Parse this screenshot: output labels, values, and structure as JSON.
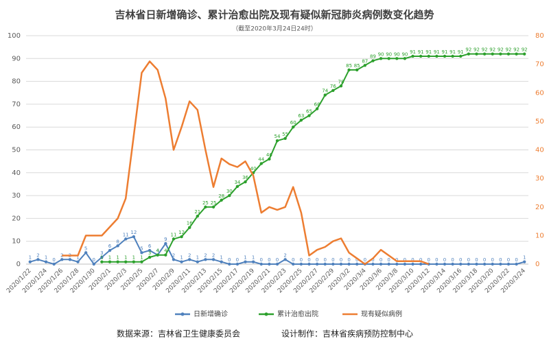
{
  "chart_data": {
    "type": "line",
    "title": "吉林省日新增确诊、累计治愈出院及现有疑似新冠肺炎病例数变化趋势",
    "subtitle": "（截至2020年3月24日24时）",
    "categories": [
      "2020/1/22",
      null,
      "2020/1/24",
      null,
      "2020/1/26",
      null,
      "2020/1/28",
      null,
      "2020/1/30",
      null,
      "2020/2/1",
      null,
      "2020/2/3",
      null,
      "2020/2/5",
      null,
      "2020/2/7",
      null,
      "2020/2/9",
      null,
      "2020/2/11",
      null,
      "2020/2/13",
      null,
      "2020/2/15",
      null,
      "2020/2/17",
      null,
      "2020/2/19",
      null,
      "2020/2/21",
      null,
      "2020/2/23",
      null,
      "2020/2/25",
      null,
      "2020/2/27",
      null,
      "2020/2/29",
      null,
      "2020/3/2",
      null,
      "2020/3/4",
      null,
      "2020/3/6",
      null,
      "2020/3/8",
      null,
      "2020/3/10",
      null,
      "2020/3/12",
      null,
      "2020/3/14",
      null,
      "2020/3/16",
      null,
      "2020/3/18",
      null,
      "2020/3/20",
      null,
      "2020/3/22",
      null,
      "2020/3/24"
    ],
    "series": [
      {
        "name": "日新增确诊",
        "color": "#4f81bd",
        "values": [
          1,
          2,
          1,
          0,
          2,
          2,
          1,
          5,
          0,
          3,
          6,
          8,
          11,
          12,
          5,
          6,
          4,
          9,
          2,
          1,
          2,
          1,
          2,
          2,
          1,
          0,
          0,
          1,
          1,
          0,
          0,
          0,
          2,
          0,
          0,
          0,
          0,
          0,
          0,
          0,
          0,
          0,
          0,
          0,
          0,
          0,
          0,
          0,
          0,
          0,
          0,
          0,
          0,
          0,
          0,
          0,
          0,
          0,
          0,
          0,
          0,
          0,
          1
        ]
      },
      {
        "name": "累计治愈出院",
        "color": "#2ca02c",
        "values": [
          null,
          null,
          null,
          null,
          null,
          null,
          null,
          null,
          null,
          1,
          1,
          1,
          1,
          1,
          1,
          3,
          4,
          4,
          11,
          12,
          16,
          21,
          25,
          25,
          28,
          30,
          34,
          36,
          40,
          44,
          46,
          54,
          55,
          60,
          63,
          65,
          68,
          74,
          76,
          78,
          85,
          85,
          87,
          89,
          90,
          90,
          90,
          90,
          91,
          91,
          91,
          91,
          91,
          91,
          91,
          92,
          92,
          92,
          92,
          92,
          92,
          92,
          92
        ]
      },
      {
        "name": "现有疑似病例",
        "color": "#ed7d31",
        "axis": "y2",
        "values": [
          null,
          null,
          null,
          null,
          3,
          3,
          3,
          10,
          10,
          10,
          13,
          16,
          23,
          45,
          67,
          71,
          68,
          58,
          40,
          48,
          57,
          54,
          40,
          27,
          37,
          35,
          34,
          36,
          31,
          18,
          20,
          19,
          20,
          27,
          18,
          3,
          5,
          6,
          8,
          9,
          4,
          2,
          0,
          2,
          5,
          3,
          1,
          1,
          1,
          1,
          0,
          null,
          null,
          null,
          null,
          null,
          null,
          null,
          null,
          null,
          null,
          null,
          null
        ]
      }
    ],
    "ylim": [
      0,
      100
    ],
    "yticks": [
      0,
      10,
      20,
      30,
      40,
      50,
      60,
      70,
      80,
      90,
      100
    ],
    "y2lim": [
      0,
      80
    ],
    "y2ticks": [
      0,
      10,
      20,
      30,
      40,
      50,
      60,
      70,
      80
    ],
    "grid": true,
    "legend": "bottom",
    "footer": {
      "source": "数据来源：吉林省卫生健康委员会",
      "designer": "设计制作：吉林省疾病预防控制中心"
    }
  }
}
